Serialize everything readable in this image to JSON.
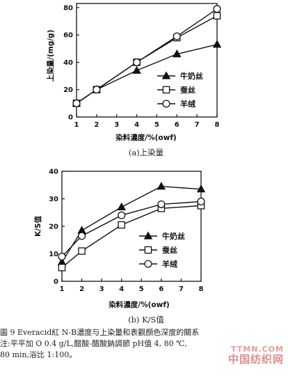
{
  "chart_data": [
    {
      "type": "line",
      "subtitle": "(a)上染量",
      "xlabel": "染料濃度/%(owf)",
      "ylabel": "上染量/(mg/g)",
      "x": [
        1,
        2,
        4,
        6,
        8
      ],
      "xticks": [
        "1",
        "2",
        "3",
        "4",
        "5",
        "6",
        "7",
        "8"
      ],
      "xlim": [
        1,
        8
      ],
      "yticks": [
        "0",
        "20",
        "40",
        "60",
        "80"
      ],
      "ylim": [
        0,
        83
      ],
      "legend_position": "bottom-right",
      "series": [
        {
          "name": "牛奶丝",
          "marker": "filled-triangle",
          "values": [
            10,
            20,
            34,
            46,
            53
          ]
        },
        {
          "name": "蚕丝",
          "marker": "open-square",
          "values": [
            10,
            20,
            40,
            58,
            74
          ]
        },
        {
          "name": "羊绒",
          "marker": "open-circle",
          "values": [
            10,
            20,
            40,
            59,
            79
          ]
        }
      ]
    },
    {
      "type": "line",
      "subtitle": "(b) K/S值",
      "xlabel": "染料濃度/%(owf)",
      "ylabel": "K/S值",
      "x": [
        1,
        2,
        4,
        6,
        8
      ],
      "xticks": [
        "1",
        "2",
        "3",
        "4",
        "5",
        "6",
        "7",
        "8"
      ],
      "xlim": [
        1,
        8
      ],
      "yticks": [
        "0",
        "10",
        "20",
        "30",
        "40"
      ],
      "ylim": [
        0,
        40
      ],
      "legend_position": "bottom-right",
      "series": [
        {
          "name": "牛奶丝",
          "marker": "filled-triangle",
          "values": [
            7,
            18.5,
            27,
            34.5,
            33.5
          ]
        },
        {
          "name": "蚕丝",
          "marker": "open-square",
          "values": [
            5,
            11,
            20.5,
            26.5,
            27.5
          ]
        },
        {
          "name": "羊绒",
          "marker": "open-circle",
          "values": [
            9,
            16.5,
            24,
            28,
            29
          ]
        }
      ]
    }
  ],
  "caption": {
    "line1": "圖 9   Everacid紅 N-B濃度与上染量和表觀顏色深度的關系",
    "line2": "     注:平平加 O 0.4 g/L,醋酸-醋酸鈉調節 pH值 4, 80 ℃,",
    "line3": "80 min,浴比 1:100。"
  },
  "watermark": {
    "url": "TTMN.COM",
    "name": "中国纺织网"
  }
}
